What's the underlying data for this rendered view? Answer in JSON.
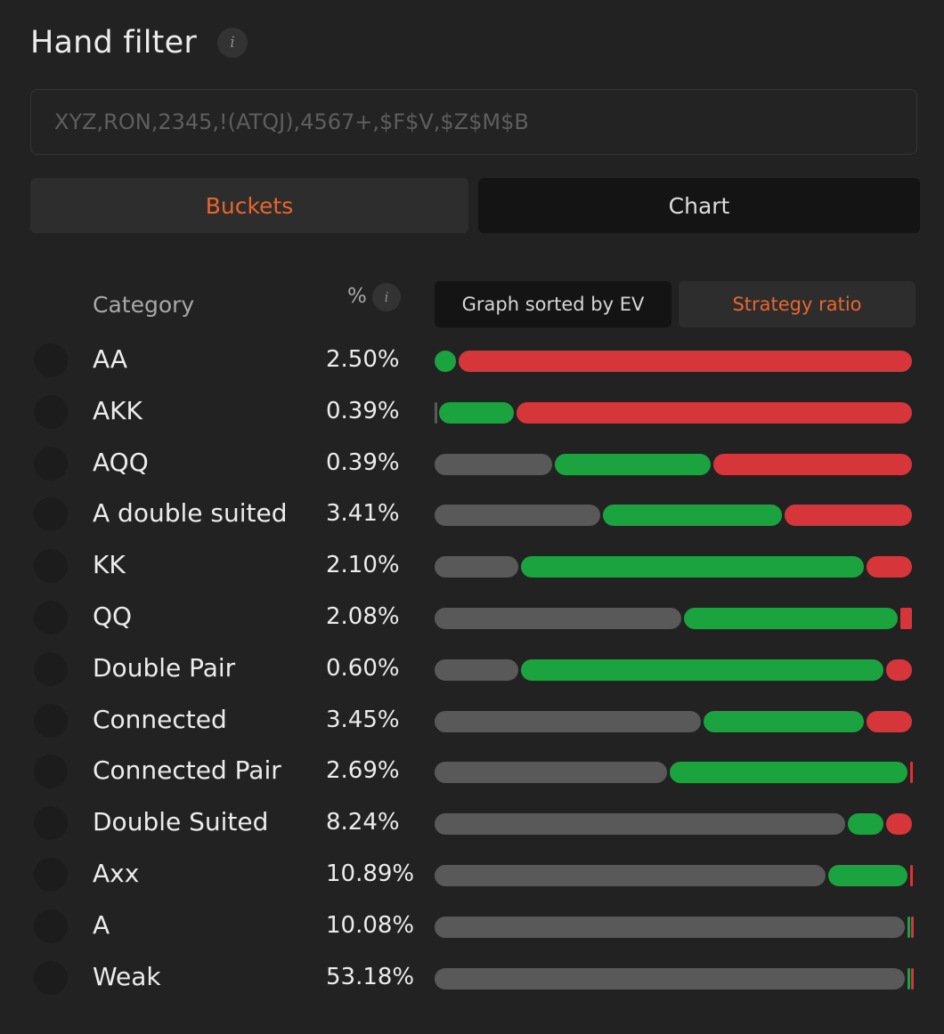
{
  "header": {
    "title": "Hand filter",
    "info_icon": "i"
  },
  "filter": {
    "placeholder": "XYZ,RON,2345,!(ATQJ),4567+,$F$V,$Z$M$B"
  },
  "mode_tabs": {
    "buckets": "Buckets",
    "chart": "Chart",
    "active": "buckets"
  },
  "table": {
    "col_category": "Category",
    "col_percent": "%",
    "percent_info_icon": "i",
    "sort_ev": "Graph sorted by EV",
    "strategy_ratio": "Strategy ratio",
    "active_view": "strategy_ratio"
  },
  "colors": {
    "accent": "#e8662e",
    "fold": "#595959",
    "call": "#1aa33f",
    "raise": "#d6363a"
  },
  "rows": [
    {
      "name": "AA",
      "pct": "2.50%",
      "ratio": {
        "fold": 0.0,
        "call": 0.05,
        "raise": 0.95
      }
    },
    {
      "name": "AKK",
      "pct": "0.39%",
      "ratio": {
        "fold": 0.01,
        "call": 0.16,
        "raise": 0.83
      }
    },
    {
      "name": "AQQ",
      "pct": "0.39%",
      "ratio": {
        "fold": 0.25,
        "call": 0.33,
        "raise": 0.42
      }
    },
    {
      "name": "A double suited",
      "pct": "3.41%",
      "ratio": {
        "fold": 0.35,
        "call": 0.38,
        "raise": 0.27
      }
    },
    {
      "name": "KK",
      "pct": "2.10%",
      "ratio": {
        "fold": 0.18,
        "call": 0.72,
        "raise": 0.1
      }
    },
    {
      "name": "QQ",
      "pct": "2.08%",
      "ratio": {
        "fold": 0.52,
        "call": 0.45,
        "raise": 0.03
      }
    },
    {
      "name": "Double Pair",
      "pct": "0.60%",
      "ratio": {
        "fold": 0.18,
        "call": 0.76,
        "raise": 0.06
      }
    },
    {
      "name": "Connected",
      "pct": "3.45%",
      "ratio": {
        "fold": 0.56,
        "call": 0.34,
        "raise": 0.1
      }
    },
    {
      "name": "Connected Pair",
      "pct": "2.69%",
      "ratio": {
        "fold": 0.49,
        "call": 0.5,
        "raise": 0.01
      }
    },
    {
      "name": "Double Suited",
      "pct": "8.24%",
      "ratio": {
        "fold": 0.86,
        "call": 0.08,
        "raise": 0.06
      }
    },
    {
      "name": "Axx",
      "pct": "10.89%",
      "ratio": {
        "fold": 0.82,
        "call": 0.17,
        "raise": 0.01
      }
    },
    {
      "name": "A",
      "pct": "10.08%",
      "ratio": {
        "fold": 0.985,
        "call": 0.008,
        "raise": 0.007
      }
    },
    {
      "name": "Weak",
      "pct": "53.18%",
      "ratio": {
        "fold": 0.985,
        "call": 0.008,
        "raise": 0.007
      }
    }
  ]
}
